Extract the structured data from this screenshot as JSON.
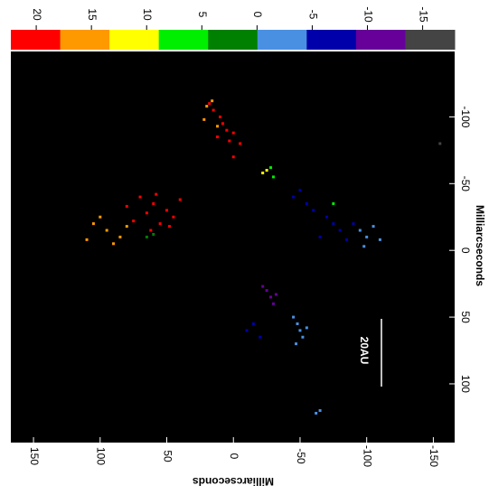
{
  "chart_data": {
    "type": "scatter",
    "xlabel": "Milliarcseconds",
    "ylabel": "Milliarcseconds",
    "xlim": [
      167,
      -166
    ],
    "xticks": [
      150,
      100,
      50,
      0,
      -50,
      -100,
      -150
    ],
    "ylim": [
      -149,
      144
    ],
    "yticks": [
      -100,
      -50,
      0,
      50,
      100
    ],
    "colorbar": {
      "lim": [
        22.3,
        -17.9
      ],
      "ticks": [
        20,
        15,
        10,
        5,
        0,
        -5,
        -10,
        -15
      ],
      "colors": [
        "#ff0000",
        "#ff9900",
        "#ffff00",
        "#00ee00",
        "#008000",
        "#4a90e2",
        "#0000aa",
        "#660099",
        "#444444"
      ]
    },
    "scale_bar_label": "20AU",
    "points": [
      {
        "x": 10,
        "y": -100,
        "v": 19
      },
      {
        "x": 8,
        "y": -95,
        "v": 19
      },
      {
        "x": 5,
        "y": -90,
        "v": 19
      },
      {
        "x": 12,
        "y": -85,
        "v": 19
      },
      {
        "x": 3,
        "y": -82,
        "v": 19
      },
      {
        "x": 15,
        "y": -105,
        "v": 19
      },
      {
        "x": 0,
        "y": -88,
        "v": 19
      },
      {
        "x": -5,
        "y": -80,
        "v": 19
      },
      {
        "x": 18,
        "y": -110,
        "v": 19
      },
      {
        "x": 20,
        "y": -108,
        "v": 15
      },
      {
        "x": 16,
        "y": -112,
        "v": 15
      },
      {
        "x": 22,
        "y": -98,
        "v": 15
      },
      {
        "x": 12,
        "y": -93,
        "v": 15
      },
      {
        "x": 70,
        "y": -40,
        "v": 19
      },
      {
        "x": 60,
        "y": -35,
        "v": 19
      },
      {
        "x": 50,
        "y": -30,
        "v": 19
      },
      {
        "x": 45,
        "y": -25,
        "v": 19
      },
      {
        "x": 55,
        "y": -20,
        "v": 19
      },
      {
        "x": 65,
        "y": -28,
        "v": 19
      },
      {
        "x": 75,
        "y": -22,
        "v": 19
      },
      {
        "x": 40,
        "y": -38,
        "v": 19
      },
      {
        "x": 80,
        "y": -33,
        "v": 19
      },
      {
        "x": 58,
        "y": -42,
        "v": 19
      },
      {
        "x": 48,
        "y": -18,
        "v": 19
      },
      {
        "x": 62,
        "y": -15,
        "v": 19
      },
      {
        "x": 100,
        "y": -25,
        "v": 15
      },
      {
        "x": 95,
        "y": -15,
        "v": 15
      },
      {
        "x": 85,
        "y": -10,
        "v": 15
      },
      {
        "x": 105,
        "y": -20,
        "v": 15
      },
      {
        "x": 110,
        "y": -8,
        "v": 15
      },
      {
        "x": 90,
        "y": -5,
        "v": 15
      },
      {
        "x": 80,
        "y": -18,
        "v": 15
      },
      {
        "x": 65,
        "y": -10,
        "v": 2
      },
      {
        "x": 60,
        "y": -12,
        "v": 2
      },
      {
        "x": -25,
        "y": -60,
        "v": 10
      },
      {
        "x": -22,
        "y": -58,
        "v": 10
      },
      {
        "x": -30,
        "y": -55,
        "v": 6
      },
      {
        "x": -28,
        "y": -62,
        "v": 6
      },
      {
        "x": 0,
        "y": -70,
        "v": 21
      },
      {
        "x": -45,
        "y": -40,
        "v": -8
      },
      {
        "x": -55,
        "y": -35,
        "v": -8
      },
      {
        "x": -60,
        "y": -30,
        "v": -8
      },
      {
        "x": -70,
        "y": -25,
        "v": -8
      },
      {
        "x": -75,
        "y": -20,
        "v": -8
      },
      {
        "x": -80,
        "y": -15,
        "v": -8
      },
      {
        "x": -65,
        "y": -10,
        "v": -8
      },
      {
        "x": -85,
        "y": -8,
        "v": -8
      },
      {
        "x": -50,
        "y": -45,
        "v": -8
      },
      {
        "x": -90,
        "y": -20,
        "v": -8
      },
      {
        "x": -95,
        "y": -15,
        "v": -3
      },
      {
        "x": -100,
        "y": -10,
        "v": -3
      },
      {
        "x": -105,
        "y": -18,
        "v": -3
      },
      {
        "x": -110,
        "y": -8,
        "v": -3
      },
      {
        "x": -98,
        "y": -3,
        "v": -3
      },
      {
        "x": -75,
        "y": -35,
        "v": 5
      },
      {
        "x": -25,
        "y": 30,
        "v": -12
      },
      {
        "x": -28,
        "y": 35,
        "v": -12
      },
      {
        "x": -30,
        "y": 40,
        "v": -12
      },
      {
        "x": -22,
        "y": 27,
        "v": -12
      },
      {
        "x": -32,
        "y": 33,
        "v": -12
      },
      {
        "x": -45,
        "y": 50,
        "v": -4
      },
      {
        "x": -48,
        "y": 55,
        "v": -4
      },
      {
        "x": -50,
        "y": 60,
        "v": -4
      },
      {
        "x": -52,
        "y": 65,
        "v": -4
      },
      {
        "x": -47,
        "y": 70,
        "v": -4
      },
      {
        "x": -55,
        "y": 58,
        "v": -4
      },
      {
        "x": -15,
        "y": 55,
        "v": -8
      },
      {
        "x": -20,
        "y": 65,
        "v": -8
      },
      {
        "x": -10,
        "y": 60,
        "v": -8
      },
      {
        "x": -65,
        "y": 120,
        "v": -4
      },
      {
        "x": -62,
        "y": 122,
        "v": -4
      },
      {
        "x": -155,
        "y": -80,
        "v": -16
      }
    ]
  }
}
